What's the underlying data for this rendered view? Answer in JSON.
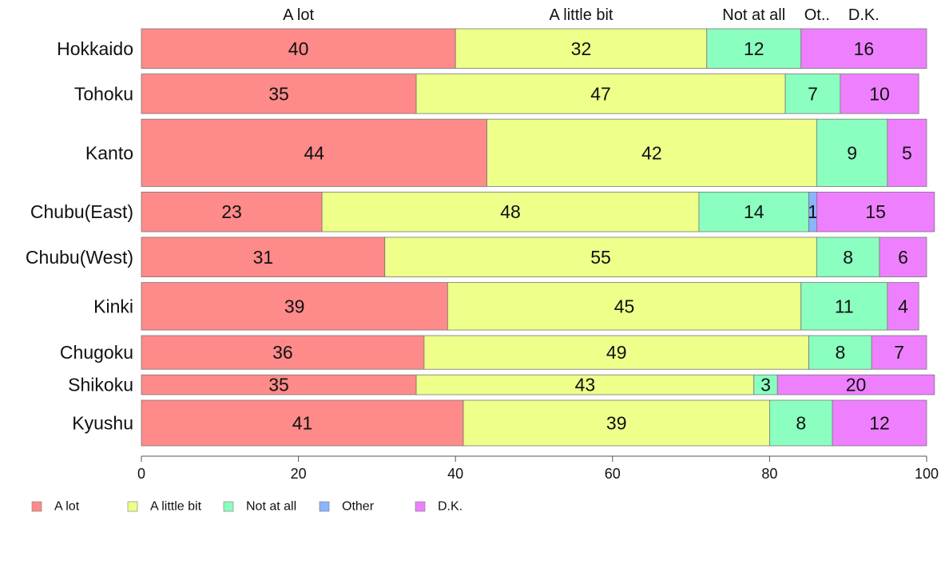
{
  "chart_data": {
    "type": "bar",
    "orientation": "horizontal",
    "stacked": true,
    "percent": true,
    "categories": [
      "Hokkaido",
      "Tohoku",
      "Kanto",
      "Chubu(East)",
      "Chubu(West)",
      "Kinki",
      "Chugoku",
      "Shikoku",
      "Kyushu"
    ],
    "bar_weights": [
      1,
      1,
      1.7,
      1,
      1,
      1.2,
      0.85,
      0.5,
      1.15
    ],
    "series": [
      {
        "name": "A lot",
        "short_label": "A lot",
        "color": "#ff8a8a",
        "values": [
          40,
          35,
          44,
          23,
          31,
          39,
          36,
          35,
          41
        ]
      },
      {
        "name": "A little bit",
        "short_label": "A little bit",
        "color": "#eeff8a",
        "values": [
          32,
          47,
          42,
          48,
          55,
          45,
          49,
          43,
          39
        ]
      },
      {
        "name": "Not at all",
        "short_label": "Not at all",
        "color": "#8affc0",
        "values": [
          12,
          7,
          9,
          14,
          8,
          11,
          8,
          3,
          8
        ]
      },
      {
        "name": "Other",
        "short_label": "Ot..",
        "color": "#8ab4ff",
        "values": [
          0,
          0,
          0,
          1,
          0,
          0,
          0,
          0,
          0
        ]
      },
      {
        "name": "D.K.",
        "short_label": "D.K.",
        "color": "#ee80ff",
        "values": [
          16,
          10,
          5,
          15,
          6,
          4,
          7,
          20,
          12
        ]
      }
    ],
    "xlim": [
      0,
      100
    ],
    "xticks": [
      0,
      20,
      40,
      60,
      80,
      100
    ],
    "title": "",
    "xlabel": "",
    "ylabel": "",
    "grid": false,
    "legend_position": "bottom-left"
  }
}
